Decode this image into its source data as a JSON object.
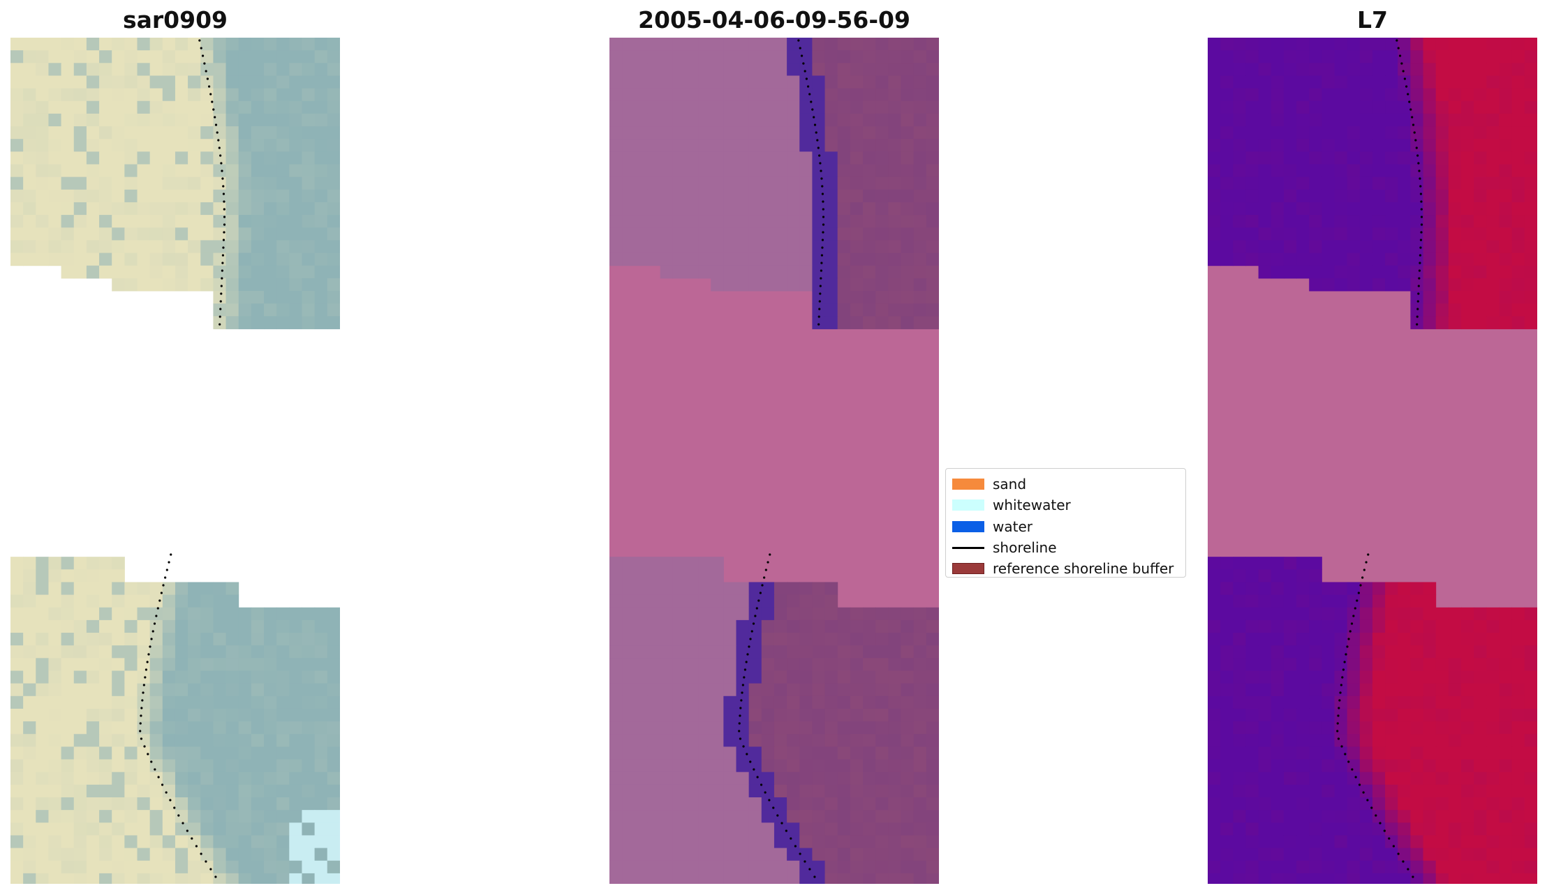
{
  "titles": {
    "left": "sar0909",
    "center": "2005-04-06-09-56-09",
    "right": "L7"
  },
  "legend": {
    "items": [
      {
        "label": "sand",
        "kind": "patch",
        "color": "#f68a3c"
      },
      {
        "label": "whitewater",
        "kind": "patch",
        "color": "#ccfffe"
      },
      {
        "label": "water",
        "kind": "patch",
        "color": "#0b5fe6"
      },
      {
        "label": "shoreline",
        "kind": "line",
        "color": "#000000"
      },
      {
        "label": "reference shoreline buffer",
        "kind": "patch",
        "color": "#9a3a3a",
        "edge": "#6e1f1f"
      }
    ]
  },
  "colors": {
    "rgb_sand": "#e6e2bc",
    "rgb_water": "#8fb3b6",
    "classified_land": "#a3699a",
    "classified_nodata": "#bc6796",
    "classified_water": "#512a9c",
    "classified_buffer": "#8a4879",
    "mndwi_low": "#5c0aa0",
    "mndwi_high": "#c30c44",
    "mndwi_nodata": "#bc6796"
  }
}
